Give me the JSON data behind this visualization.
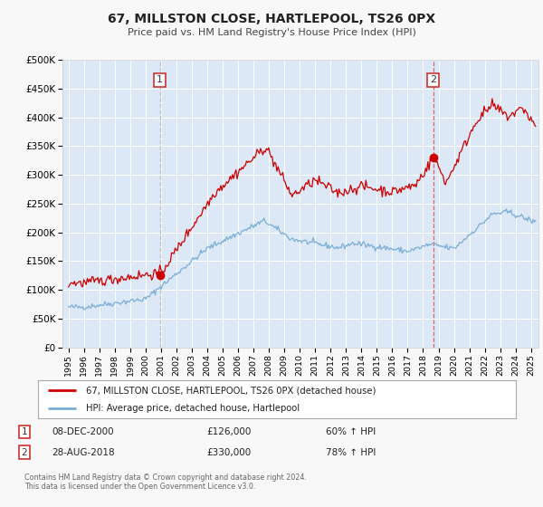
{
  "title": "67, MILLSTON CLOSE, HARTLEPOOL, TS26 0PX",
  "subtitle": "Price paid vs. HM Land Registry's House Price Index (HPI)",
  "bg_color": "#f8f8f8",
  "plot_bg_color": "#dce8f5",
  "grid_color": "#ffffff",
  "red_line_color": "#cc0000",
  "blue_line_color": "#7aaed6",
  "ylim": [
    0,
    500000
  ],
  "yticks": [
    0,
    50000,
    100000,
    150000,
    200000,
    250000,
    300000,
    350000,
    400000,
    450000,
    500000
  ],
  "ytick_labels": [
    "£0",
    "£50K",
    "£100K",
    "£150K",
    "£200K",
    "£250K",
    "£300K",
    "£350K",
    "£400K",
    "£450K",
    "£500K"
  ],
  "xlim_start": 1994.6,
  "xlim_end": 2025.5,
  "xtick_positions": [
    1995,
    1996,
    1997,
    1998,
    1999,
    2000,
    2001,
    2002,
    2003,
    2004,
    2005,
    2006,
    2007,
    2008,
    2009,
    2010,
    2011,
    2012,
    2013,
    2014,
    2015,
    2016,
    2017,
    2018,
    2019,
    2020,
    2021,
    2022,
    2023,
    2024,
    2025
  ],
  "xtick_labels": [
    "1995",
    "1996",
    "1997",
    "1998",
    "1999",
    "2000",
    "2001",
    "2002",
    "2003",
    "2004",
    "2005",
    "2006",
    "2007",
    "2008",
    "2009",
    "2010",
    "2011",
    "2012",
    "2013",
    "2014",
    "2015",
    "2016",
    "2017",
    "2018",
    "2019",
    "2020",
    "2021",
    "2022",
    "2023",
    "2024",
    "2025"
  ],
  "sale1_x": 2000.92,
  "sale1_y": 126000,
  "sale1_label": "1",
  "sale1_date": "08-DEC-2000",
  "sale1_price": "£126,000",
  "sale1_hpi": "60% ↑ HPI",
  "sale2_x": 2018.65,
  "sale2_y": 330000,
  "sale2_label": "2",
  "sale2_date": "28-AUG-2018",
  "sale2_price": "£330,000",
  "sale2_hpi": "78% ↑ HPI",
  "legend_label_red": "67, MILLSTON CLOSE, HARTLEPOOL, TS26 0PX (detached house)",
  "legend_label_blue": "HPI: Average price, detached house, Hartlepool",
  "footer_line1": "Contains HM Land Registry data © Crown copyright and database right 2024.",
  "footer_line2": "This data is licensed under the Open Government Licence v3.0."
}
